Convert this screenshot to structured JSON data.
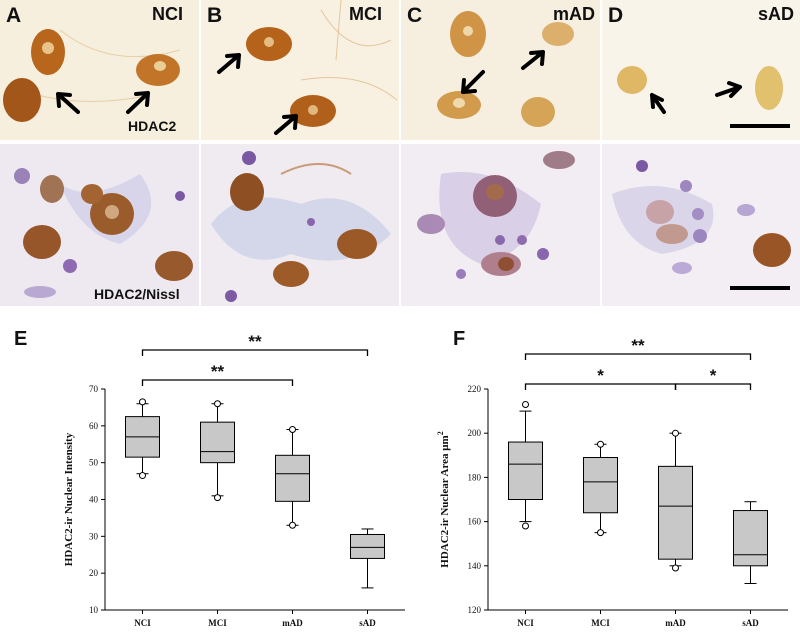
{
  "micrographs": {
    "top_row": [
      {
        "panel": "A",
        "group": "NCI",
        "stain": "HDAC2"
      },
      {
        "panel": "B",
        "group": "MCI",
        "stain": ""
      },
      {
        "panel": "C",
        "group": "mAD",
        "stain": ""
      },
      {
        "panel": "D",
        "group": "sAD",
        "stain": ""
      }
    ],
    "bottom_row": [
      {
        "stain": "HDAC2/Nissl"
      },
      {
        "stain": ""
      },
      {
        "stain": ""
      },
      {
        "stain": ""
      }
    ],
    "colors": {
      "dab_background": "#f6ecd9",
      "dab_nucleus": "#b8661c",
      "nissl_background": "#efeaf1",
      "nissl_cell": "#8b6aa8",
      "scale_bar": "#000000"
    }
  },
  "chart_data": [
    {
      "label": "E",
      "type": "boxplot",
      "categories": [
        "NCI",
        "MCI",
        "mAD",
        "sAD"
      ],
      "ylabel": "HDAC2-ir Nuclear Intensity",
      "ylim": [
        10,
        70
      ],
      "yticks": [
        10,
        20,
        30,
        40,
        50,
        60,
        70
      ],
      "boxes": [
        {
          "whisker_low": 47,
          "q1": 51.5,
          "median": 57,
          "q3": 62.5,
          "whisker_high": 66,
          "outliers": [
            46.5,
            66.5
          ]
        },
        {
          "whisker_low": 41,
          "q1": 50,
          "median": 53,
          "q3": 61,
          "whisker_high": 66,
          "outliers": [
            40.5,
            66
          ]
        },
        {
          "whisker_low": 33,
          "q1": 39.5,
          "median": 47,
          "q3": 52,
          "whisker_high": 59,
          "outliers": [
            33,
            59
          ]
        },
        {
          "whisker_low": 16,
          "q1": 24,
          "median": 27,
          "q3": 30.5,
          "whisker_high": 32,
          "outliers": []
        }
      ],
      "significance": [
        {
          "from": 0,
          "to": 3,
          "text": "**"
        },
        {
          "from": 0,
          "to": 2,
          "text": "**"
        }
      ],
      "box_fill": "#c8c8c8"
    },
    {
      "label": "F",
      "type": "boxplot",
      "categories": [
        "NCI",
        "MCI",
        "mAD",
        "sAD"
      ],
      "ylabel": "HDAC2-ir Nuclear Area μm",
      "ylabel_superscript": "2",
      "ylim": [
        120,
        220
      ],
      "yticks": [
        120,
        140,
        160,
        180,
        200,
        220
      ],
      "boxes": [
        {
          "whisker_low": 160,
          "q1": 170,
          "median": 186,
          "q3": 196,
          "whisker_high": 210,
          "outliers": [
            158,
            213
          ]
        },
        {
          "whisker_low": 155,
          "q1": 164,
          "median": 178,
          "q3": 189,
          "whisker_high": 195,
          "outliers": [
            155,
            195
          ]
        },
        {
          "whisker_low": 140,
          "q1": 143,
          "median": 167,
          "q3": 185,
          "whisker_high": 200,
          "outliers": [
            139,
            200
          ]
        },
        {
          "whisker_low": 132,
          "q1": 140,
          "median": 145,
          "q3": 165,
          "whisker_high": 169,
          "outliers": []
        }
      ],
      "significance": [
        {
          "from": 0,
          "to": 3,
          "text": "**"
        },
        {
          "from": 0,
          "to": 2,
          "text": "*"
        },
        {
          "from": 2,
          "to": 3,
          "text": "*"
        }
      ],
      "box_fill": "#c8c8c8"
    }
  ]
}
